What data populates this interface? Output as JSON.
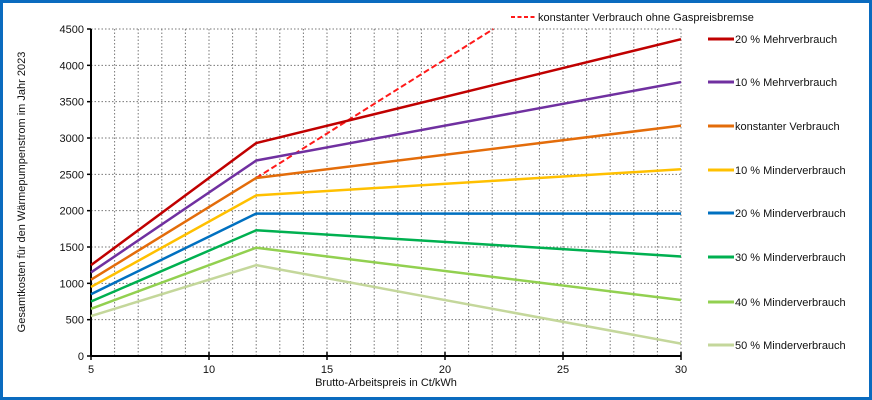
{
  "chart_data": {
    "type": "line",
    "title": "",
    "xlabel": "Brutto-Arbeitspreis in Ct/kWh",
    "ylabel": "Gesamtkosten für den Wärmepumpenstrom im Jahr 2023",
    "xlim": [
      5,
      30
    ],
    "ylim": [
      0,
      4500
    ],
    "xticks": [
      5,
      10,
      15,
      20,
      25,
      30
    ],
    "yticks": [
      0,
      500,
      1000,
      1500,
      2000,
      2500,
      3000,
      3500,
      4000,
      4500
    ],
    "grid": true,
    "legend_placement": "right",
    "series": [
      {
        "name": "konstanter Verbrauch ohne Gaspreisbremse",
        "color": "#ff1a1a",
        "dashed": true,
        "x": [
          12,
          22.05
        ],
        "y": [
          2450,
          4500
        ]
      },
      {
        "name": "20 % Mehrverbrauch",
        "color": "#c00000",
        "x": [
          5,
          12,
          30
        ],
        "y": [
          1250,
          2930,
          4360
        ]
      },
      {
        "name": "10 % Mehrverbrauch",
        "color": "#7030a0",
        "x": [
          5,
          12,
          30
        ],
        "y": [
          1150,
          2690,
          3770
        ]
      },
      {
        "name": "konstanter Verbrauch",
        "color": "#e36c0a",
        "x": [
          5,
          12,
          30
        ],
        "y": [
          1050,
          2450,
          3170
        ]
      },
      {
        "name": "10 % Minderverbrauch",
        "color": "#ffc000",
        "x": [
          5,
          12,
          30
        ],
        "y": [
          950,
          2210,
          2570
        ]
      },
      {
        "name": "20 % Minderverbrauch",
        "color": "#0070c0",
        "x": [
          5,
          12,
          30
        ],
        "y": [
          850,
          1960,
          1960
        ]
      },
      {
        "name": "30 % Minderverbrauch",
        "color": "#00b050",
        "x": [
          5,
          12,
          30
        ],
        "y": [
          750,
          1730,
          1370
        ]
      },
      {
        "name": "40 % Minderverbrauch",
        "color": "#92d050",
        "x": [
          5,
          12,
          30
        ],
        "y": [
          650,
          1490,
          770
        ]
      },
      {
        "name": "50 % Minderverbrauch",
        "color": "#c4d79b",
        "x": [
          5,
          12,
          30
        ],
        "y": [
          550,
          1250,
          170
        ]
      }
    ]
  }
}
